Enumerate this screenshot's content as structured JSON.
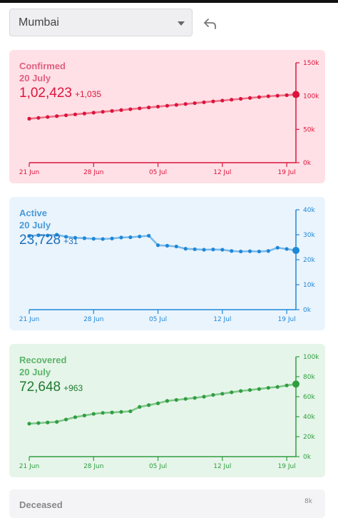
{
  "header": {
    "city": "Mumbai",
    "undo_icon": "undo-arrow-icon"
  },
  "cards": [
    {
      "key": "confirmed",
      "label": "Confirmed",
      "date": "20 July",
      "value": "1,02,423",
      "delta": "+1,035",
      "colors": {
        "bg": "#ffe0e6",
        "line": "#dc143c",
        "text": "#dc143c",
        "label": "#e06080"
      },
      "y_ticks": [
        "150k",
        "100k",
        "50k",
        "0k"
      ],
      "y_max": 150000,
      "x_ticks": [
        "21 Jun",
        "28 Jun",
        "05 Jul",
        "12 Jul",
        "19 Jul"
      ],
      "chart_data": {
        "type": "line",
        "ylim": [
          0,
          150000
        ],
        "series": [
          {
            "values": [
              66000,
              67300,
              68600,
              69900,
              71200,
              72500,
              73800,
              75100,
              76400,
              77700,
              79000,
              80300,
              81600,
              82900,
              84200,
              85500,
              86800,
              88100,
              89400,
              90700,
              92000,
              93300,
              94600,
              95900,
              97200,
              98500,
              99800,
              100600,
              101400,
              102423
            ]
          }
        ]
      }
    },
    {
      "key": "active",
      "label": "Active",
      "date": "20 July",
      "value": "23,728",
      "delta": "+31",
      "colors": {
        "bg": "#eaf4fd",
        "line": "#1e88d8",
        "text": "#1e6fb8",
        "label": "#4a9ad8"
      },
      "y_ticks": [
        "40k",
        "30k",
        "20k",
        "10k",
        "0k"
      ],
      "y_max": 40000,
      "x_ticks": [
        "21 Jun",
        "28 Jun",
        "05 Jul",
        "12 Jul",
        "19 Jul"
      ],
      "chart_data": {
        "type": "line",
        "ylim": [
          0,
          40000
        ],
        "series": [
          {
            "values": [
              29500,
              29800,
              29700,
              30000,
              29200,
              28800,
              28600,
              28400,
              28300,
              28500,
              28900,
              29000,
              29300,
              29600,
              25800,
              25600,
              25300,
              24400,
              24200,
              24000,
              24100,
              24000,
              23500,
              23300,
              23400,
              23300,
              23500,
              24800,
              24300,
              23728
            ]
          }
        ]
      }
    },
    {
      "key": "recovered",
      "label": "Recovered",
      "date": "20 July",
      "value": "72,648",
      "delta": "+963",
      "colors": {
        "bg": "#e6f5e9",
        "line": "#2e9e40",
        "text": "#1f7a30",
        "label": "#5cb46a"
      },
      "y_ticks": [
        "100k",
        "80k",
        "60k",
        "40k",
        "20k",
        "0k"
      ],
      "y_max": 100000,
      "x_ticks": [
        "21 Jun",
        "28 Jun",
        "05 Jul",
        "12 Jul",
        "19 Jul"
      ],
      "chart_data": {
        "type": "line",
        "ylim": [
          0,
          100000
        ],
        "series": [
          {
            "values": [
              33000,
              33600,
              34200,
              34800,
              37200,
              39500,
              41200,
              42800,
              43800,
              44200,
              44800,
              45400,
              49800,
              51600,
              53400,
              55800,
              56800,
              57800,
              58800,
              60000,
              61800,
              63000,
              64400,
              65700,
              66700,
              67700,
              68900,
              69800,
              71300,
              72648
            ]
          }
        ]
      }
    }
  ],
  "next_card": {
    "label": "Deceased",
    "tick": "8k"
  }
}
